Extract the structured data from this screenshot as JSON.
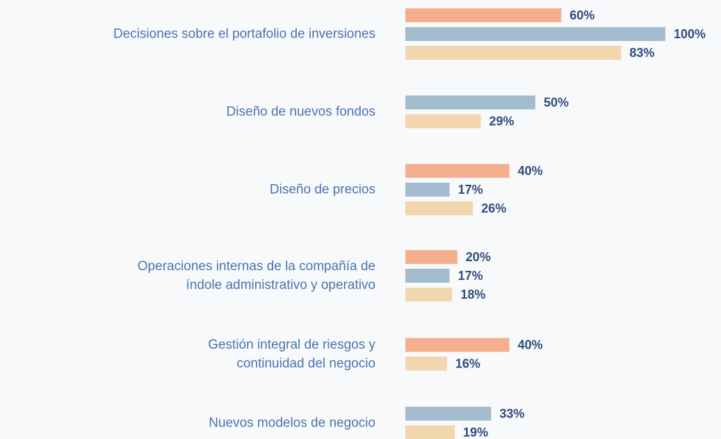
{
  "chart_data": {
    "type": "bar",
    "orientation": "horizontal",
    "categories": [
      "Decisiones sobre el portafolio de inversiones",
      "Diseño de nuevos fondos",
      "Diseño de precios",
      "Operaciones internas de la compañía de\níndole administrativo y operativo",
      "Gestión integral de riesgos y\ncontinuidad del negocio",
      "Nuevos modelos de negocio"
    ],
    "series": [
      {
        "color": "#f4b08e",
        "values": [
          60,
          null,
          40,
          20,
          40,
          null
        ],
        "value_labels": [
          "60%",
          null,
          "40%",
          "20%",
          "40%",
          null
        ]
      },
      {
        "color": "#a3bccd",
        "values": [
          100,
          50,
          17,
          17,
          null,
          33
        ],
        "value_labels": [
          "100%",
          "50%",
          "17%",
          "17%",
          null,
          "33%"
        ]
      },
      {
        "color": "#f2d6ad",
        "values": [
          83,
          29,
          26,
          18,
          16,
          19
        ],
        "value_labels": [
          "83%",
          "29%",
          "26%",
          "18%",
          "16%",
          "19%"
        ]
      }
    ]
  }
}
